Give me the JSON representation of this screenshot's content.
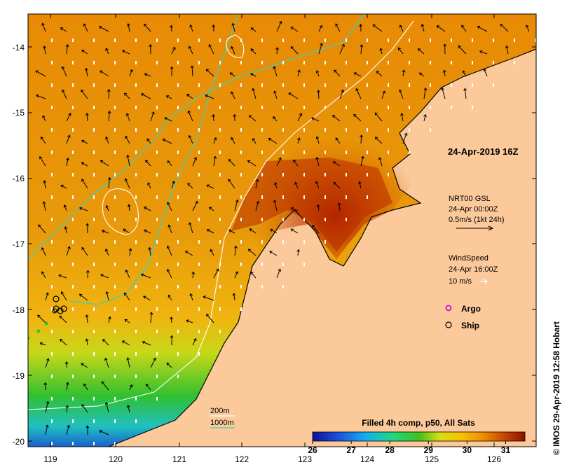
{
  "map": {
    "lon_ticks": [
      "119",
      "120",
      "121",
      "122",
      "123",
      "124",
      "125",
      "126"
    ],
    "lat_ticks": [
      "-14",
      "-15",
      "-16",
      "-17",
      "-18",
      "-19",
      "-20"
    ],
    "lon_range": [
      118.6,
      126.7
    ],
    "lat_range": [
      -20.15,
      -13.55
    ]
  },
  "annotations": {
    "timestamp": "24-Apr-2019 16Z",
    "current_product": "NRT00 GSL",
    "current_time": "24-Apr 00:00Z",
    "current_scale": "0.5m/s (1kt 24h)",
    "wind_title": "WindSpeed",
    "wind_time": "24-Apr 16:00Z",
    "wind_scale": "10 m/s"
  },
  "legend": {
    "argo_label": "Argo",
    "ship_label": "Ship",
    "contour_200": "200m",
    "contour_1000": "1000m",
    "colorbar_title": "Filled 4h comp, p50, All Sats",
    "colorbar_ticks": [
      "26",
      "27",
      "28",
      "29",
      "30",
      "31"
    ],
    "colorbar_range": [
      26,
      31.5
    ]
  },
  "credit": "© IMOS 29-Apr-2019 12:58 Hobart",
  "colors": {
    "land": "#fbc99a",
    "contour_200m": "#ffffff",
    "contour_1000m": "#40d0b8",
    "argo": "#d020d0",
    "coast": "#000000"
  }
}
